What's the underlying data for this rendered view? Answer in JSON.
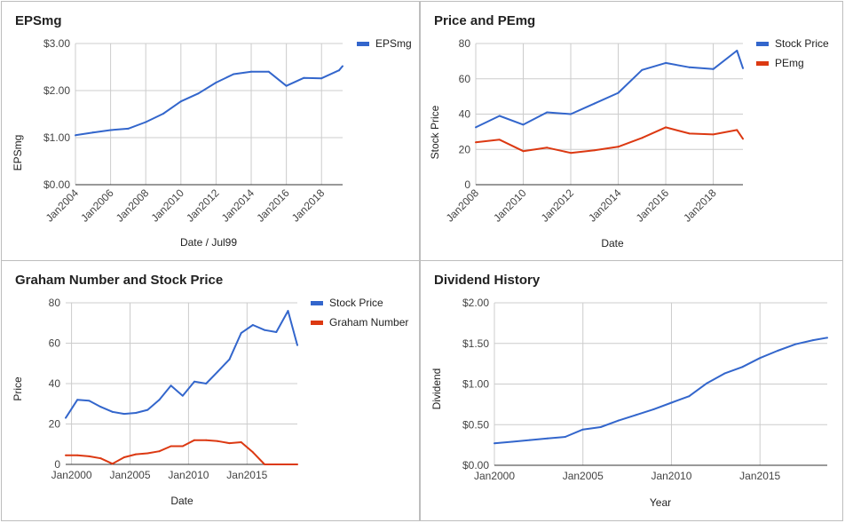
{
  "chart_data": [
    {
      "type": "line",
      "title": "EPSmg",
      "xlabel": "Date / Jul99",
      "ylabel": "EPSmg",
      "ylim": [
        0,
        3
      ],
      "xlim": [
        2004,
        2019.2
      ],
      "yticks": [
        {
          "v": 0,
          "label": "$0.00"
        },
        {
          "v": 1,
          "label": "$1.00"
        },
        {
          "v": 2,
          "label": "$2.00"
        },
        {
          "v": 3,
          "label": "$3.00"
        }
      ],
      "xticks": [
        {
          "v": 2004,
          "label": "Jan2004"
        },
        {
          "v": 2006,
          "label": "Jan2006"
        },
        {
          "v": 2008,
          "label": "Jan2008"
        },
        {
          "v": 2010,
          "label": "Jan2010"
        },
        {
          "v": 2012,
          "label": "Jan2012"
        },
        {
          "v": 2014,
          "label": "Jan2014"
        },
        {
          "v": 2016,
          "label": "Jan2016"
        },
        {
          "v": 2018,
          "label": "Jan2018"
        }
      ],
      "legend_position": "right",
      "grid": true,
      "series": [
        {
          "name": "EPSmg",
          "color": "#3366cc",
          "x": [
            2004,
            2005,
            2006,
            2007,
            2008,
            2009,
            2010,
            2011,
            2012,
            2013,
            2014,
            2015,
            2016,
            2017,
            2018,
            2019,
            2019.2
          ],
          "y": [
            1.05,
            1.11,
            1.16,
            1.19,
            1.33,
            1.51,
            1.77,
            1.94,
            2.17,
            2.35,
            2.4,
            2.4,
            2.1,
            2.27,
            2.26,
            2.43,
            2.52
          ]
        }
      ]
    },
    {
      "type": "line",
      "title": "Price and PEmg",
      "xlabel": "Date",
      "ylabel": "Stock Price",
      "ylim": [
        0,
        80
      ],
      "xlim": [
        2008,
        2019.25
      ],
      "yticks": [
        {
          "v": 0,
          "label": "0"
        },
        {
          "v": 20,
          "label": "20"
        },
        {
          "v": 40,
          "label": "40"
        },
        {
          "v": 60,
          "label": "60"
        },
        {
          "v": 80,
          "label": "80"
        }
      ],
      "xticks": [
        {
          "v": 2008,
          "label": "Jan2008"
        },
        {
          "v": 2010,
          "label": "Jan2010"
        },
        {
          "v": 2012,
          "label": "Jan2012"
        },
        {
          "v": 2014,
          "label": "Jan2014"
        },
        {
          "v": 2016,
          "label": "Jan2016"
        },
        {
          "v": 2018,
          "label": "Jan2018"
        }
      ],
      "legend_position": "right",
      "grid": true,
      "series": [
        {
          "name": "Stock Price",
          "color": "#3366cc",
          "x": [
            2008,
            2009,
            2010,
            2011,
            2012,
            2013,
            2014,
            2015,
            2016,
            2017,
            2018,
            2019,
            2019.25
          ],
          "y": [
            32.5,
            39,
            34,
            41,
            40,
            46,
            52,
            65,
            69,
            66.5,
            65.5,
            76,
            66
          ]
        },
        {
          "name": "PEmg",
          "color": "#dc3912",
          "x": [
            2008,
            2009,
            2010,
            2011,
            2012,
            2013,
            2014,
            2015,
            2016,
            2017,
            2018,
            2019,
            2019.25
          ],
          "y": [
            24,
            25.5,
            19,
            21,
            18,
            19.5,
            21.5,
            26.5,
            32.5,
            29,
            28.5,
            31,
            26
          ]
        }
      ]
    },
    {
      "type": "line",
      "title": "Graham Number and Stock Price",
      "xlabel": "Date",
      "ylabel": "Price",
      "ylim": [
        0,
        80
      ],
      "xlim": [
        1999.5,
        2019.3
      ],
      "yticks": [
        {
          "v": 0,
          "label": "0"
        },
        {
          "v": 20,
          "label": "20"
        },
        {
          "v": 40,
          "label": "40"
        },
        {
          "v": 60,
          "label": "60"
        },
        {
          "v": 80,
          "label": "80"
        }
      ],
      "xticks": [
        {
          "v": 2000,
          "label": "Jan2000"
        },
        {
          "v": 2005,
          "label": "Jan2005"
        },
        {
          "v": 2010,
          "label": "Jan2010"
        },
        {
          "v": 2015,
          "label": "Jan2015"
        }
      ],
      "legend_position": "right",
      "grid": true,
      "series": [
        {
          "name": "Stock Price",
          "color": "#3366cc",
          "x": [
            1999.5,
            2000.5,
            2001.5,
            2002.5,
            2003.5,
            2004.5,
            2005.5,
            2006.5,
            2007.5,
            2008.5,
            2009.5,
            2010.5,
            2011.5,
            2012.5,
            2013.5,
            2014.5,
            2015.5,
            2016.5,
            2017.5,
            2018.5,
            2019.3
          ],
          "y": [
            23,
            32,
            31.5,
            28.5,
            26,
            25,
            25.5,
            27,
            32,
            39,
            34,
            41,
            40,
            46,
            52,
            65,
            69,
            66.5,
            65.5,
            76,
            59
          ]
        },
        {
          "name": "Graham Number",
          "color": "#dc3912",
          "x": [
            1999.5,
            2000.5,
            2001.5,
            2002.5,
            2003.5,
            2004.5,
            2005.5,
            2006.5,
            2007.5,
            2008.5,
            2009.5,
            2010.5,
            2011.5,
            2012.5,
            2013.5,
            2014.5,
            2015.5,
            2016.5,
            2017.5,
            2018.5,
            2019.3
          ],
          "y": [
            4.5,
            4.5,
            4,
            3,
            0.3,
            3.5,
            5,
            5.5,
            6.5,
            9,
            9,
            12,
            12,
            11.5,
            10.5,
            11,
            6,
            0,
            0,
            0,
            0
          ]
        }
      ]
    },
    {
      "type": "line",
      "title": "Dividend History",
      "xlabel": "Year",
      "ylabel": "Dividend",
      "ylim": [
        0,
        2
      ],
      "xlim": [
        2000,
        2018.8
      ],
      "yticks": [
        {
          "v": 0,
          "label": "$0.00"
        },
        {
          "v": 0.5,
          "label": "$0.50"
        },
        {
          "v": 1,
          "label": "$1.00"
        },
        {
          "v": 1.5,
          "label": "$1.50"
        },
        {
          "v": 2,
          "label": "$2.00"
        }
      ],
      "xticks": [
        {
          "v": 2000,
          "label": "Jan2000"
        },
        {
          "v": 2005,
          "label": "Jan2005"
        },
        {
          "v": 2010,
          "label": "Jan2010"
        },
        {
          "v": 2015,
          "label": "Jan2015"
        }
      ],
      "legend_position": "none",
      "grid": true,
      "series": [
        {
          "name": "",
          "color": "#3366cc",
          "x": [
            2000,
            2001,
            2002,
            2003,
            2004,
            2005,
            2006,
            2007,
            2008,
            2009,
            2010,
            2011,
            2012,
            2013,
            2014,
            2015,
            2016,
            2017,
            2018,
            2018.8
          ],
          "y": [
            0.27,
            0.29,
            0.31,
            0.33,
            0.35,
            0.44,
            0.47,
            0.55,
            0.62,
            0.69,
            0.77,
            0.85,
            1.01,
            1.13,
            1.21,
            1.32,
            1.41,
            1.49,
            1.54,
            1.57
          ]
        }
      ]
    }
  ]
}
